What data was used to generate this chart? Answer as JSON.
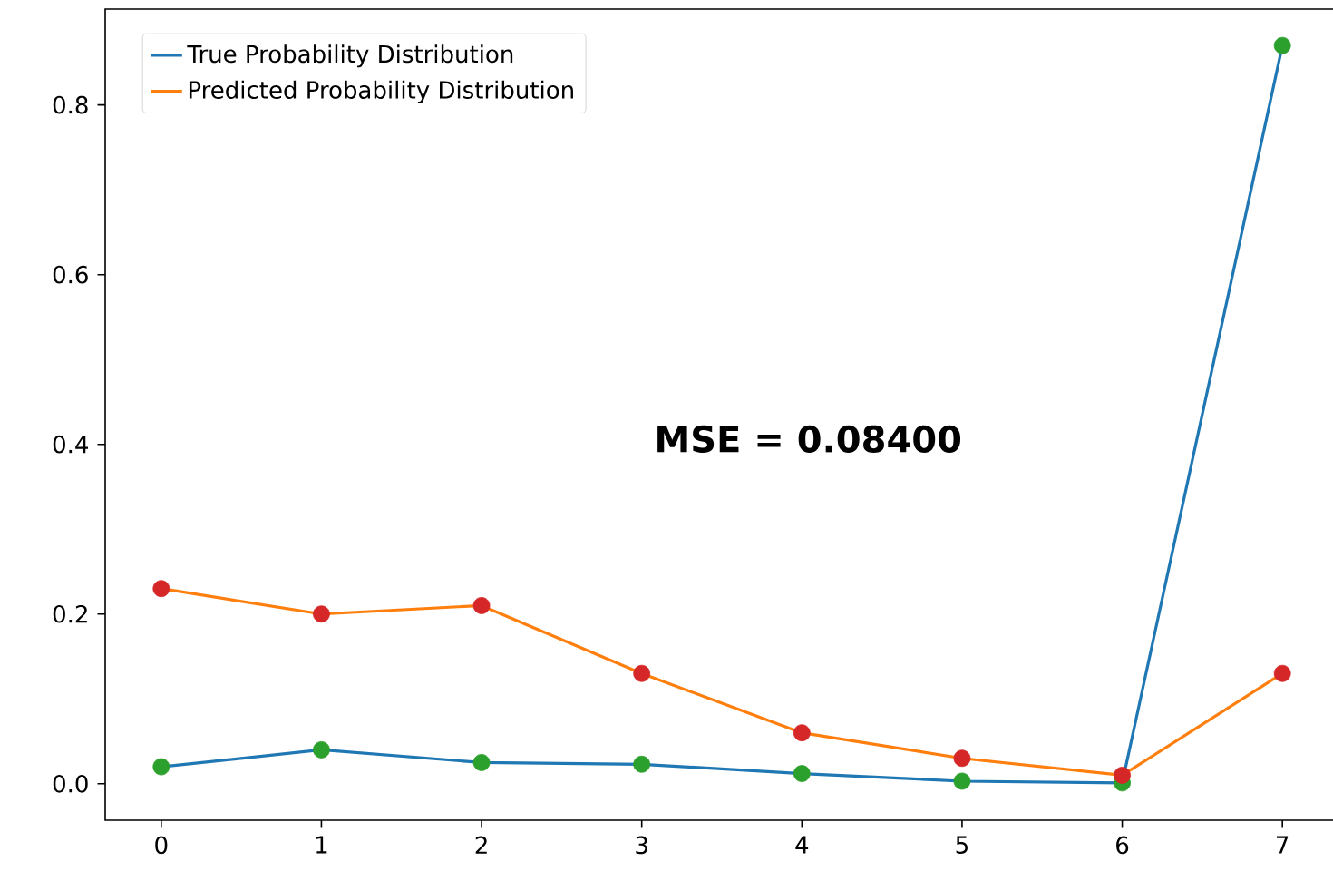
{
  "chart_data": {
    "type": "line",
    "categories": [
      "0",
      "1",
      "2",
      "3",
      "4",
      "5",
      "6",
      "7"
    ],
    "series": [
      {
        "name": "True Probability Distribution",
        "color": "#1f77b4",
        "values": [
          0.02,
          0.04,
          0.025,
          0.023,
          0.012,
          0.003,
          0.001,
          0.87
        ]
      },
      {
        "name": "Predicted Probability Distribution",
        "color": "#ff7f0e",
        "values": [
          0.23,
          0.2,
          0.21,
          0.13,
          0.06,
          0.03,
          0.01,
          0.13
        ]
      },
      {
        "type": "scatter",
        "marker": "circle",
        "color": "#2ca02c",
        "values": [
          0.02,
          0.04,
          0.025,
          0.023,
          0.012,
          0.003,
          0.001,
          0.87
        ]
      },
      {
        "type": "scatter",
        "marker": "circle",
        "color": "#d62728",
        "values": [
          0.23,
          0.2,
          0.21,
          0.13,
          0.06,
          0.03,
          0.01,
          0.13
        ]
      }
    ],
    "ylim": [
      -0.043,
      0.913
    ],
    "yticks": [
      {
        "value": 0,
        "label": "0.0"
      },
      {
        "value": 0.2,
        "label": "0.2"
      },
      {
        "value": 0.4,
        "label": "0.4"
      },
      {
        "value": 0.6,
        "label": "0.6"
      },
      {
        "value": 0.8,
        "label": "0.8"
      }
    ],
    "annotations": [
      "MSE = 0.08400"
    ],
    "legend": "top left",
    "grid": false
  }
}
